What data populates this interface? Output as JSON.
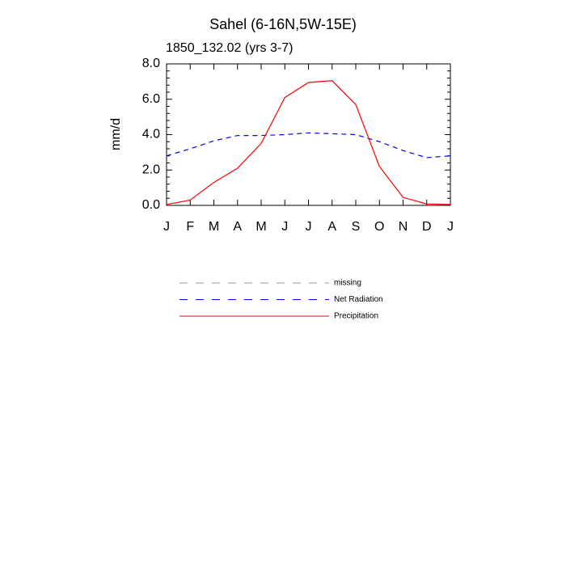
{
  "chart_data": {
    "type": "line",
    "title": "Sahel (6-16N,5W-15E)",
    "subtitle": "1850_132.02 (yrs 3-7)",
    "y_label": "mm/d",
    "categories": [
      "J",
      "F",
      "M",
      "A",
      "M",
      "J",
      "J",
      "A",
      "S",
      "O",
      "N",
      "D",
      "J"
    ],
    "series": [
      {
        "name": "missing",
        "color": "#999999",
        "dashed": true,
        "values": [
          null,
          null,
          null,
          null,
          null,
          null,
          null,
          null,
          null,
          null,
          null,
          null,
          null
        ]
      },
      {
        "name": "Net Radiation",
        "color": "#0000ff",
        "dashed": true,
        "values": [
          2.8,
          3.2,
          3.65,
          3.95,
          3.95,
          4.0,
          4.1,
          4.05,
          4.0,
          3.6,
          3.1,
          2.7,
          2.8
        ]
      },
      {
        "name": "Precipitation",
        "color": "#ff0000",
        "dashed": false,
        "values": [
          0.05,
          0.3,
          1.3,
          2.1,
          3.5,
          6.1,
          6.95,
          7.05,
          5.7,
          2.2,
          0.45,
          0.08,
          0.05
        ]
      }
    ],
    "ylim": [
      0,
      8
    ],
    "yticks": [
      {
        "value": 0,
        "label": "0.0"
      },
      {
        "value": 2,
        "label": "2.0"
      },
      {
        "value": 4,
        "label": "4.0"
      },
      {
        "value": 6,
        "label": "6.0"
      },
      {
        "value": 8,
        "label": "8.0"
      }
    ]
  }
}
